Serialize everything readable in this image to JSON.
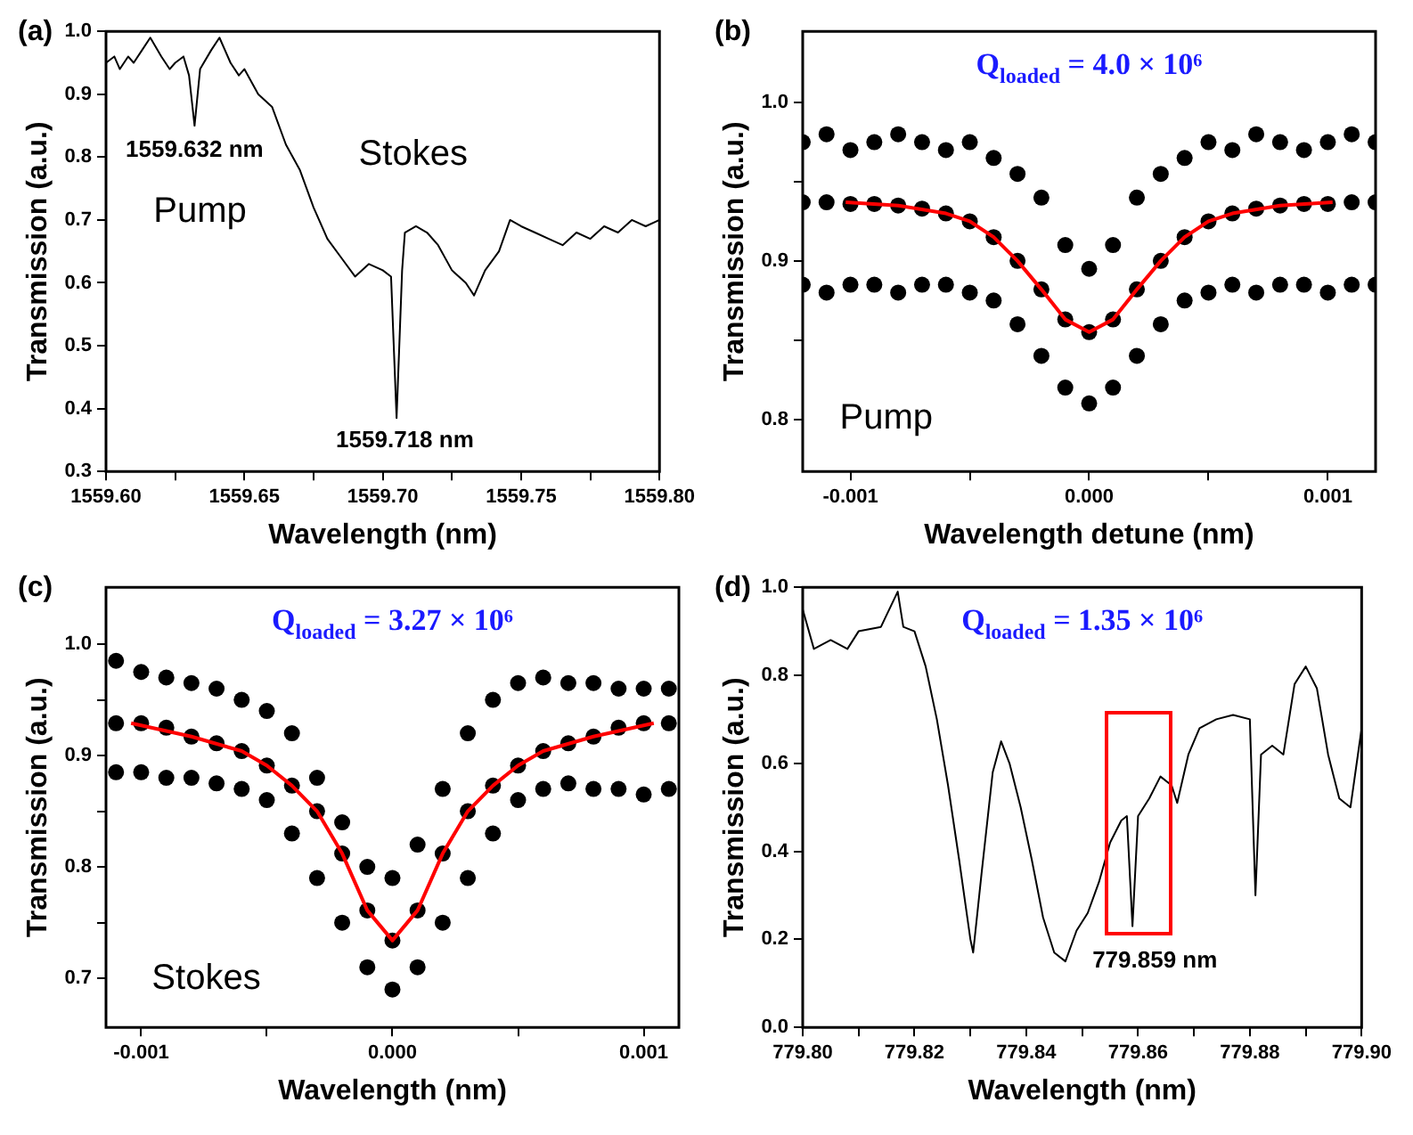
{
  "chart_data": [
    {
      "type": "line",
      "title": "(a)",
      "xlabel": "Wavelength (nm)",
      "ylabel": "Transmission (a.u.)",
      "xlim": [
        1559.6,
        1559.8
      ],
      "ylim": [
        0.3,
        1.0
      ],
      "xticks": [
        {
          "value": 1559.6,
          "label": "1559.60"
        },
        {
          "value": 1559.625,
          "label": null
        },
        1559.65,
        {
          "value": 1559.675,
          "label": null
        },
        {
          "value": 1559.7,
          "label": "1559.70"
        },
        {
          "value": 1559.725,
          "label": null
        },
        1559.75,
        {
          "value": 1559.775,
          "label": null
        },
        {
          "value": 1559.8,
          "label": "1559.80"
        }
      ],
      "yticks": [
        0.3,
        0.4,
        0.5,
        0.6,
        0.7,
        0.8,
        0.9,
        {
          "value": 1.0,
          "label": "1.0"
        }
      ],
      "series": [
        {
          "color": "#000000",
          "marker": "none",
          "x": [
            1559.6,
            1559.603,
            1559.605,
            1559.608,
            1559.61,
            1559.613,
            1559.616,
            1559.62,
            1559.623,
            1559.625,
            1559.628,
            1559.63,
            1559.632,
            1559.634,
            1559.638,
            1559.641,
            1559.645,
            1559.648,
            1559.65,
            1559.655,
            1559.66,
            1559.665,
            1559.67,
            1559.675,
            1559.68,
            1559.685,
            1559.69,
            1559.695,
            1559.7,
            1559.703,
            1559.705,
            1559.707,
            1559.708,
            1559.712,
            1559.716,
            1559.72,
            1559.725,
            1559.73,
            1559.733,
            1559.737,
            1559.742,
            1559.746,
            1559.75,
            1559.755,
            1559.76,
            1559.765,
            1559.77,
            1559.775,
            1559.78,
            1559.785,
            1559.79,
            1559.795,
            1559.8
          ],
          "values": [
            0.95,
            0.96,
            0.94,
            0.96,
            0.95,
            0.97,
            0.99,
            0.96,
            0.94,
            0.95,
            0.96,
            0.93,
            0.85,
            0.94,
            0.97,
            0.99,
            0.95,
            0.93,
            0.94,
            0.9,
            0.88,
            0.82,
            0.78,
            0.72,
            0.67,
            0.64,
            0.61,
            0.63,
            0.62,
            0.61,
            0.385,
            0.62,
            0.68,
            0.69,
            0.68,
            0.66,
            0.62,
            0.6,
            0.58,
            0.62,
            0.65,
            0.7,
            0.69,
            0.68,
            0.67,
            0.66,
            0.68,
            0.67,
            0.69,
            0.68,
            0.7,
            0.69,
            0.7
          ]
        }
      ],
      "annotations": [
        "1559.632 nm",
        "1559.718 nm",
        "Pump",
        "Stokes"
      ]
    },
    {
      "type": "scatter",
      "title": "(b)",
      "subtitle": "Q$_{loaded}$ = 4.0 × 10⁶",
      "xlabel": "Wavelength detune (nm)",
      "ylabel": "Transmission (a.u.)",
      "xlim": [
        -0.0012,
        0.0012
      ],
      "ylim": [
        0.767,
        1.045
      ],
      "xticks": [
        {
          "value": -0.001,
          "label": "-0.001"
        },
        {
          "value": -0.0005,
          "label": null
        },
        {
          "value": 0,
          "label": "0.000"
        },
        {
          "value": 0.0005,
          "label": null
        },
        0.001
      ],
      "yticks": [
        0.8,
        {
          "value": 0.85,
          "label": null
        },
        0.9,
        {
          "value": 0.95,
          "label": null
        },
        {
          "value": 1.0,
          "label": "1.0"
        }
      ],
      "series": [
        {
          "color": "#000000",
          "marker": "circle",
          "x": [
            -0.0012,
            -0.0011,
            -0.001,
            -0.0009,
            -0.0008,
            -0.0007,
            -0.0006,
            -0.0005,
            -0.0004,
            -0.0003,
            -0.0002,
            -0.0001,
            0,
            0.0001,
            0.0002,
            0.0003,
            0.0004,
            0.0005,
            0.0006,
            0.0007,
            0.0008,
            0.0009,
            0.001,
            0.0011,
            0.0012,
            -0.0012,
            -0.0011,
            -0.001,
            -0.0009,
            -0.0008,
            -0.0007,
            -0.0006,
            -0.0005,
            -0.0004,
            -0.0003,
            -0.0002,
            -0.0001,
            0,
            0.0001,
            0.0002,
            0.0003,
            0.0004,
            0.0005,
            0.0006,
            0.0007,
            0.0008,
            0.0009,
            0.001,
            0.0011,
            0.0012,
            -0.0012,
            -0.0011,
            -0.001,
            -0.0009,
            -0.0008,
            -0.0007,
            -0.0006,
            -0.0005,
            -0.0004,
            -0.0003,
            -0.0002,
            -0.0001,
            0,
            0.0001,
            0.0002,
            0.0003,
            0.0004,
            0.0005,
            0.0006,
            0.0007,
            0.0008,
            0.0009,
            0.001,
            0.0011,
            0.0012
          ],
          "values": [
            0.975,
            0.98,
            0.97,
            0.975,
            0.98,
            0.975,
            0.97,
            0.975,
            0.965,
            0.955,
            0.94,
            0.91,
            0.895,
            0.91,
            0.94,
            0.955,
            0.965,
            0.975,
            0.97,
            0.98,
            0.975,
            0.97,
            0.975,
            0.98,
            0.975,
            0.937,
            0.937,
            0.936,
            0.936,
            0.935,
            0.933,
            0.93,
            0.925,
            0.915,
            0.9,
            0.882,
            0.863,
            0.855,
            0.863,
            0.882,
            0.9,
            0.915,
            0.925,
            0.93,
            0.933,
            0.935,
            0.936,
            0.936,
            0.937,
            0.937,
            0.885,
            0.88,
            0.885,
            0.885,
            0.88,
            0.885,
            0.885,
            0.88,
            0.875,
            0.86,
            0.84,
            0.82,
            0.81,
            0.82,
            0.84,
            0.86,
            0.875,
            0.88,
            0.885,
            0.88,
            0.885,
            0.885,
            0.88,
            0.885,
            0.885
          ]
        },
        {
          "type": "line",
          "color": "#ff0000",
          "marker": "none",
          "x": [
            -0.00102,
            -0.0008,
            -0.0006,
            -0.0005,
            -0.0004,
            -0.0003,
            -0.0002,
            -0.0001,
            0,
            0.0001,
            0.0002,
            0.0003,
            0.0004,
            0.0005,
            0.0006,
            0.0008,
            0.00102
          ],
          "values": [
            0.937,
            0.935,
            0.93,
            0.925,
            0.915,
            0.9,
            0.882,
            0.863,
            0.855,
            0.863,
            0.882,
            0.9,
            0.915,
            0.925,
            0.93,
            0.935,
            0.937
          ]
        }
      ],
      "annotations": [
        "Pump"
      ]
    },
    {
      "type": "scatter",
      "title": "(c)",
      "subtitle": "Q$_{loaded}$ = 3.27 × 10⁶",
      "xlabel": "Wavelength (nm)",
      "ylabel": "Transmission (a.u.)",
      "xlim": [
        -0.00114,
        0.00114
      ],
      "ylim": [
        0.656,
        1.051
      ],
      "xticks": [
        {
          "value": -0.001,
          "label": "-0.001"
        },
        {
          "value": -0.0005,
          "label": null
        },
        {
          "value": 0,
          "label": "0.000"
        },
        {
          "value": 0.0005,
          "label": null
        },
        0.001
      ],
      "yticks": [
        0.7,
        {
          "value": 0.75,
          "label": null
        },
        0.8,
        {
          "value": 0.85,
          "label": null
        },
        0.9,
        {
          "value": 0.95,
          "label": null
        },
        {
          "value": 1.0,
          "label": "1.0"
        }
      ],
      "series": [
        {
          "color": "#000000",
          "marker": "circle",
          "x": [
            -0.0011,
            -0.001,
            -0.0009,
            -0.0008,
            -0.0007,
            -0.0006,
            -0.0005,
            -0.0004,
            -0.0003,
            -0.0002,
            -0.0001,
            0,
            0.0001,
            0.0002,
            0.0003,
            0.0004,
            0.0005,
            0.0006,
            0.0007,
            0.0008,
            0.0009,
            0.001,
            0.0011,
            -0.0011,
            -0.001,
            -0.0009,
            -0.0008,
            -0.0007,
            -0.0006,
            -0.0005,
            -0.0004,
            -0.0003,
            -0.0002,
            -0.0001,
            0,
            0.0001,
            0.0002,
            0.0003,
            0.0004,
            0.0005,
            0.0006,
            0.0007,
            0.0008,
            0.0009,
            0.001,
            0.0011,
            -0.0011,
            -0.001,
            -0.0009,
            -0.0008,
            -0.0007,
            -0.0006,
            -0.0005,
            -0.0004,
            -0.0003,
            -0.0002,
            -0.0001,
            0,
            0.0001,
            0.0002,
            0.0003,
            0.0004,
            0.0005,
            0.0006,
            0.0007,
            0.0008,
            0.0009,
            0.001,
            0.0011
          ],
          "values": [
            0.985,
            0.975,
            0.97,
            0.965,
            0.96,
            0.95,
            0.94,
            0.92,
            0.88,
            0.84,
            0.8,
            0.79,
            0.82,
            0.87,
            0.92,
            0.95,
            0.965,
            0.97,
            0.965,
            0.965,
            0.96,
            0.96,
            0.96,
            0.929,
            0.929,
            0.925,
            0.917,
            0.911,
            0.904,
            0.891,
            0.873,
            0.85,
            0.812,
            0.761,
            0.734,
            0.761,
            0.812,
            0.85,
            0.873,
            0.891,
            0.904,
            0.911,
            0.917,
            0.925,
            0.929,
            0.929,
            0.885,
            0.885,
            0.88,
            0.88,
            0.875,
            0.87,
            0.86,
            0.83,
            0.79,
            0.75,
            0.71,
            0.69,
            0.71,
            0.75,
            0.79,
            0.83,
            0.86,
            0.87,
            0.875,
            0.87,
            0.87,
            0.865,
            0.87
          ]
        },
        {
          "type": "line",
          "color": "#ff0000",
          "marker": "none",
          "x": [
            -0.00104,
            -0.0008,
            -0.0006,
            -0.0005,
            -0.0004,
            -0.0003,
            -0.0002,
            -0.0001,
            0,
            0.0001,
            0.0002,
            0.0003,
            0.0004,
            0.0005,
            0.0006,
            0.0008,
            0.00104
          ],
          "values": [
            0.929,
            0.917,
            0.904,
            0.891,
            0.873,
            0.85,
            0.812,
            0.761,
            0.734,
            0.761,
            0.812,
            0.85,
            0.873,
            0.891,
            0.904,
            0.917,
            0.929
          ]
        }
      ],
      "annotations": [
        "Stokes"
      ]
    },
    {
      "type": "line",
      "title": "(d)",
      "subtitle": "Q$_{loaded}$ = 1.35 × 10⁶",
      "xlabel": "Wavelength (nm)",
      "ylabel": "Transmission (a.u.)",
      "xlim": [
        779.8,
        779.9
      ],
      "ylim": [
        0,
        1.0
      ],
      "xticks": [
        {
          "value": 779.8,
          "label": "779.80"
        },
        {
          "value": 779.81,
          "label": null
        },
        779.82,
        {
          "value": 779.83,
          "label": null
        },
        779.84,
        {
          "value": 779.85,
          "label": null
        },
        779.86,
        {
          "value": 779.87,
          "label": null
        },
        779.88,
        {
          "value": 779.89,
          "label": null
        },
        {
          "value": 779.9,
          "label": "779.90"
        }
      ],
      "yticks": [
        {
          "value": 0,
          "label": "0.0"
        },
        0.2,
        0.4,
        0.6,
        0.8,
        {
          "value": 1.0,
          "label": "1.0"
        }
      ],
      "series": [
        {
          "color": "#000000",
          "marker": "none",
          "x": [
            779.8,
            779.802,
            779.805,
            779.808,
            779.81,
            779.814,
            779.817,
            779.818,
            779.82,
            779.822,
            779.824,
            779.826,
            779.828,
            779.83,
            779.8305,
            779.832,
            779.834,
            779.8355,
            779.837,
            779.839,
            779.841,
            779.843,
            779.845,
            779.847,
            779.849,
            779.851,
            779.853,
            779.855,
            779.857,
            779.858,
            779.859,
            779.86,
            779.862,
            779.864,
            779.866,
            779.867,
            779.869,
            779.871,
            779.874,
            779.877,
            779.88,
            779.881,
            779.882,
            779.884,
            779.886,
            779.888,
            779.89,
            779.892,
            779.894,
            779.896,
            779.898,
            779.9
          ],
          "values": [
            0.95,
            0.86,
            0.88,
            0.86,
            0.9,
            0.91,
            0.99,
            0.91,
            0.9,
            0.82,
            0.7,
            0.55,
            0.38,
            0.2,
            0.17,
            0.35,
            0.58,
            0.65,
            0.6,
            0.5,
            0.38,
            0.25,
            0.17,
            0.15,
            0.22,
            0.26,
            0.33,
            0.42,
            0.47,
            0.48,
            0.23,
            0.48,
            0.52,
            0.57,
            0.55,
            0.51,
            0.62,
            0.68,
            0.7,
            0.71,
            0.7,
            0.3,
            0.62,
            0.64,
            0.62,
            0.78,
            0.82,
            0.77,
            0.62,
            0.52,
            0.5,
            0.68
          ]
        }
      ],
      "annotations": [
        "779.859 nm"
      ]
    }
  ]
}
